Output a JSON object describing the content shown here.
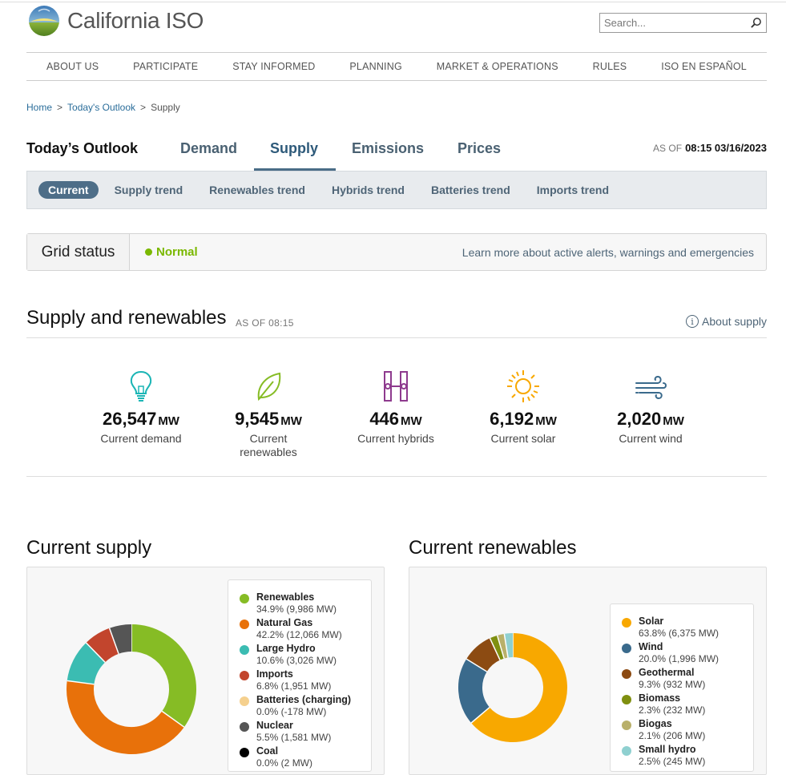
{
  "header": {
    "logo_text": "California ISO",
    "search_placeholder": "Search..."
  },
  "nav": [
    "ABOUT US",
    "PARTICIPATE",
    "STAY INFORMED",
    "PLANNING",
    "MARKET & OPERATIONS",
    "RULES",
    "ISO EN ESPAÑOL"
  ],
  "breadcrumb": {
    "home": "Home",
    "outlook": "Today's Outlook",
    "current": "Supply",
    "sep": ">"
  },
  "outlook": {
    "title": "Today’s Outlook",
    "tabs": [
      "Demand",
      "Supply",
      "Emissions",
      "Prices"
    ],
    "active_tab": "Supply",
    "asof_label": "AS OF",
    "asof_value": "08:15 03/16/2023"
  },
  "subnav": [
    "Current",
    "Supply trend",
    "Renewables trend",
    "Hybrids trend",
    "Batteries trend",
    "Imports trend"
  ],
  "grid_status": {
    "label": "Grid status",
    "status": "Normal",
    "link": "Learn more about active alerts, warnings and emergencies"
  },
  "supply_renewables": {
    "title": "Supply and renewables",
    "asof": "AS OF 08:15",
    "about_link": "About supply",
    "stats": [
      {
        "icon": "lightbulb-icon",
        "value": "26,547",
        "unit": "MW",
        "label": "Current demand"
      },
      {
        "icon": "leaf-icon",
        "value": "9,545",
        "unit": "MW",
        "label": "Current renewables"
      },
      {
        "icon": "hybrid-icon",
        "value": "446",
        "unit": "MW",
        "label": "Current hybrids"
      },
      {
        "icon": "sun-icon",
        "value": "6,192",
        "unit": "MW",
        "label": "Current solar"
      },
      {
        "icon": "wind-icon",
        "value": "2,020",
        "unit": "MW",
        "label": "Current wind"
      }
    ]
  },
  "chart_data": [
    {
      "type": "pie",
      "title": "Current supply",
      "series": [
        {
          "name": "Renewables",
          "label": "34.9% (9,986 MW)",
          "percent": 34.9,
          "color": "#86bc25"
        },
        {
          "name": "Natural Gas",
          "label": "42.2% (12,066 MW)",
          "percent": 42.2,
          "color": "#e8710a"
        },
        {
          "name": "Large Hydro",
          "label": "10.6% (3,026 MW)",
          "percent": 10.6,
          "color": "#3bbcb2"
        },
        {
          "name": "Imports",
          "label": "6.8% (1,951 MW)",
          "percent": 6.8,
          "color": "#c2452d"
        },
        {
          "name": "Batteries (charging)",
          "label": "0.0% (-178 MW)",
          "percent": 0.0,
          "color": "#f5d08e"
        },
        {
          "name": "Nuclear",
          "label": "5.5% (1,581 MW)",
          "percent": 5.5,
          "color": "#555555"
        },
        {
          "name": "Coal",
          "label": "0.0% (2 MW)",
          "percent": 0.0,
          "color": "#000000"
        }
      ]
    },
    {
      "type": "pie",
      "title": "Current renewables",
      "series": [
        {
          "name": "Solar",
          "label": "63.8% (6,375 MW)",
          "percent": 63.8,
          "color": "#f8a800"
        },
        {
          "name": "Wind",
          "label": "20.0% (1,996 MW)",
          "percent": 20.0,
          "color": "#3a6a8c"
        },
        {
          "name": "Geothermal",
          "label": "9.3% (932 MW)",
          "percent": 9.3,
          "color": "#8c4b12"
        },
        {
          "name": "Biomass",
          "label": "2.3% (232 MW)",
          "percent": 2.3,
          "color": "#7f8f10"
        },
        {
          "name": "Biogas",
          "label": "2.1% (206 MW)",
          "percent": 2.1,
          "color": "#b9b06a"
        },
        {
          "name": "Small hydro",
          "label": "2.5% (245 MW)",
          "percent": 2.5,
          "color": "#8fd0d0"
        }
      ]
    }
  ]
}
